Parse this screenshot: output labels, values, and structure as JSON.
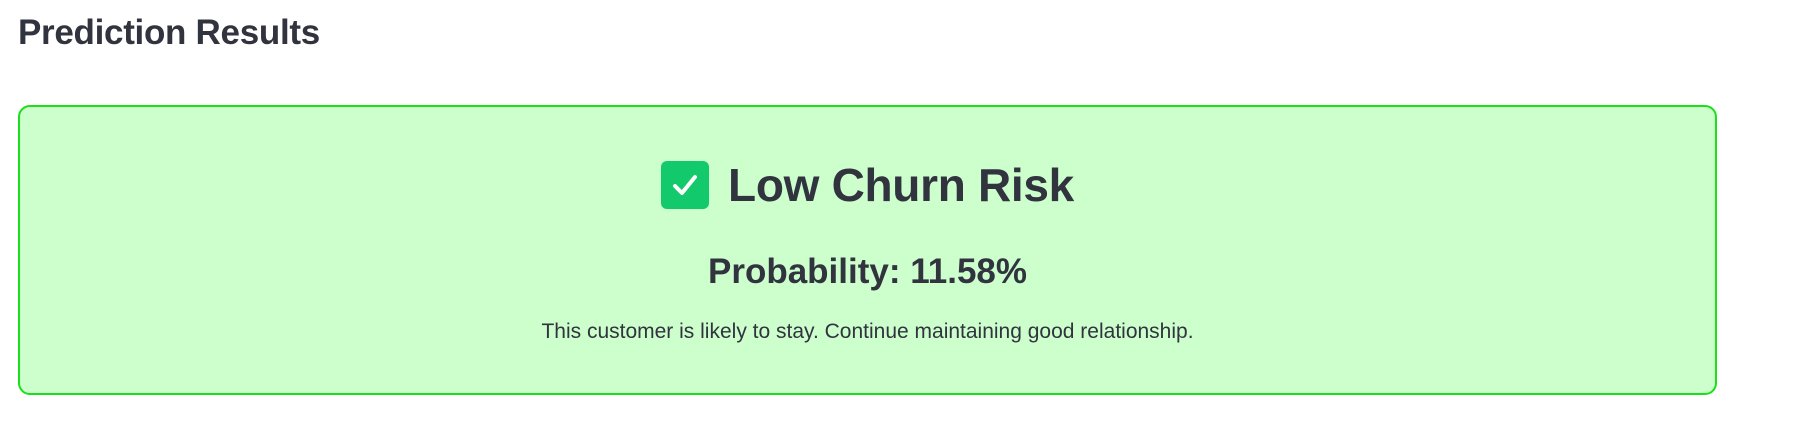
{
  "section": {
    "title": "Prediction Results"
  },
  "result": {
    "icon": "checkmark-icon",
    "risk_label": "Low Churn Risk",
    "probability_text": "Probability: 11.58%",
    "probability_value": 11.58,
    "message": "This customer is likely to stay. Continue maintaining good relationship.",
    "colors": {
      "card_background": "#ccffcc",
      "card_border": "#1cdf1c",
      "icon_background": "#12c96c",
      "text": "#31333f"
    }
  }
}
